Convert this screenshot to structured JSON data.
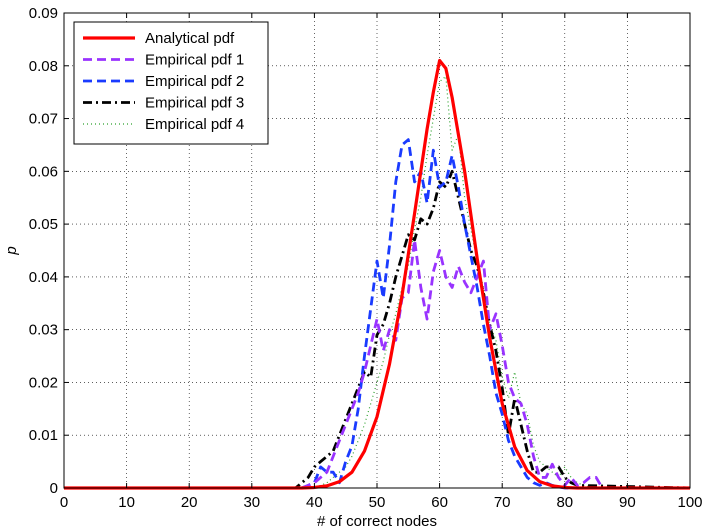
{
  "chart_data": {
    "type": "line",
    "title": "",
    "xlabel": "# of correct nodes",
    "ylabel": "p",
    "xlim": [
      0,
      100
    ],
    "ylim": [
      0,
      0.09
    ],
    "xticks": [
      0,
      10,
      20,
      30,
      40,
      50,
      60,
      70,
      80,
      90,
      100
    ],
    "yticks": [
      0,
      0.01,
      0.02,
      0.03,
      0.04,
      0.05,
      0.06,
      0.07,
      0.08,
      0.09
    ],
    "xtick_labels": [
      "0",
      "10",
      "20",
      "30",
      "40",
      "50",
      "60",
      "70",
      "80",
      "90",
      "100"
    ],
    "ytick_labels": [
      "0",
      "0.01",
      "0.02",
      "0.03",
      "0.04",
      "0.05",
      "0.06",
      "0.07",
      "0.08",
      "0.09"
    ],
    "grid": true,
    "legend_position": "top-left",
    "series": [
      {
        "name": "Analytical pdf",
        "color": "#ff0000",
        "dash": "solid",
        "x": [
          0,
          38,
          40,
          42,
          44,
          46,
          48,
          50,
          52,
          54,
          56,
          58,
          59,
          60,
          61,
          62,
          64,
          66,
          68,
          70,
          72,
          74,
          76,
          78,
          80,
          82,
          100
        ],
        "values": [
          0,
          0,
          0.0001,
          0.0004,
          0.0012,
          0.003,
          0.007,
          0.0135,
          0.0235,
          0.0365,
          0.052,
          0.068,
          0.075,
          0.081,
          0.0795,
          0.074,
          0.06,
          0.0435,
          0.0285,
          0.016,
          0.0078,
          0.0033,
          0.0012,
          0.0004,
          0.0001,
          0,
          0
        ]
      },
      {
        "name": "Empirical pdf 1",
        "color": "#9933ff",
        "dash": "dashed",
        "x": [
          0,
          38,
          39,
          40,
          41,
          42,
          43,
          44,
          45,
          46,
          47,
          48,
          49,
          50,
          51,
          52,
          53,
          54,
          55,
          56,
          57,
          58,
          59,
          60,
          61,
          62,
          63,
          64,
          65,
          66,
          67,
          68,
          69,
          70,
          71,
          72,
          73,
          74,
          75,
          76,
          77,
          78,
          79,
          80,
          81,
          82,
          83,
          84,
          85,
          86,
          100
        ],
        "values": [
          0,
          0,
          0.0005,
          0.001,
          0.002,
          0.003,
          0.006,
          0.009,
          0.012,
          0.015,
          0.018,
          0.022,
          0.027,
          0.032,
          0.026,
          0.03,
          0.028,
          0.036,
          0.037,
          0.047,
          0.038,
          0.032,
          0.041,
          0.045,
          0.04,
          0.038,
          0.042,
          0.039,
          0.037,
          0.04,
          0.043,
          0.03,
          0.033,
          0.027,
          0.02,
          0.017,
          0.016,
          0.012,
          0.006,
          0.002,
          0.002,
          0.0045,
          0.002,
          0.0005,
          0.002,
          0.0005,
          0.001,
          0.002,
          0.002,
          0,
          0
        ]
      },
      {
        "name": "Empirical pdf 2",
        "color": "#1a3bff",
        "dash": "dashed",
        "x": [
          0,
          38,
          39,
          40,
          41,
          42,
          43,
          44,
          45,
          46,
          47,
          48,
          49,
          50,
          51,
          52,
          53,
          54,
          55,
          56,
          57,
          58,
          59,
          60,
          61,
          62,
          63,
          64,
          65,
          66,
          67,
          68,
          69,
          70,
          71,
          72,
          73,
          74,
          75,
          76,
          77,
          78,
          79,
          80,
          100
        ],
        "values": [
          0,
          0,
          0.0005,
          0.001,
          0.004,
          0.003,
          0.003,
          0.001,
          0.005,
          0.008,
          0.015,
          0.025,
          0.034,
          0.043,
          0.036,
          0.046,
          0.058,
          0.065,
          0.066,
          0.058,
          0.06,
          0.054,
          0.064,
          0.057,
          0.058,
          0.063,
          0.057,
          0.05,
          0.044,
          0.038,
          0.031,
          0.025,
          0.018,
          0.014,
          0.009,
          0.006,
          0.004,
          0.002,
          0.001,
          0.0005,
          0.001,
          0.0005,
          0.0002,
          0,
          0
        ]
      },
      {
        "name": "Empirical pdf 3",
        "color": "#000000",
        "dash": "dashdot",
        "x": [
          0,
          37,
          38,
          39,
          40,
          41,
          42,
          43,
          44,
          45,
          46,
          47,
          48,
          49,
          50,
          51,
          52,
          53,
          54,
          55,
          56,
          57,
          58,
          59,
          60,
          61,
          62,
          63,
          64,
          65,
          66,
          67,
          68,
          69,
          70,
          71,
          72,
          73,
          74,
          75,
          76,
          77,
          78,
          79,
          80,
          81,
          82,
          100
        ],
        "values": [
          0,
          0,
          0.001,
          0.002,
          0.004,
          0.005,
          0.006,
          0.007,
          0.01,
          0.013,
          0.016,
          0.019,
          0.022,
          0.021,
          0.029,
          0.031,
          0.035,
          0.04,
          0.044,
          0.048,
          0.047,
          0.051,
          0.05,
          0.053,
          0.058,
          0.057,
          0.06,
          0.055,
          0.05,
          0.045,
          0.042,
          0.037,
          0.031,
          0.026,
          0.019,
          0.01,
          0.017,
          0.012,
          0.007,
          0.003,
          0.003,
          0.004,
          0.004,
          0.004,
          0.002,
          0.001,
          0.0005,
          0
        ]
      },
      {
        "name": "Empirical pdf 4",
        "color": "#2ca02c",
        "dash": "dotted",
        "x": [
          0,
          40,
          41,
          42,
          43,
          44,
          45,
          46,
          47,
          48,
          49,
          50,
          51,
          52,
          53,
          54,
          55,
          56,
          57,
          58,
          59,
          60,
          61,
          62,
          63,
          64,
          65,
          66,
          67,
          68,
          69,
          70,
          71,
          72,
          73,
          74,
          75,
          76,
          77,
          78,
          79,
          80,
          81,
          82,
          83,
          84,
          100
        ],
        "values": [
          0,
          0,
          0.0005,
          0.001,
          0.002,
          0.003,
          0.004,
          0.006,
          0.009,
          0.012,
          0.016,
          0.02,
          0.024,
          0.029,
          0.033,
          0.038,
          0.042,
          0.049,
          0.055,
          0.063,
          0.07,
          0.077,
          0.078,
          0.064,
          0.067,
          0.055,
          0.049,
          0.043,
          0.038,
          0.031,
          0.028,
          0.021,
          0.017,
          0.022,
          0.016,
          0.014,
          0.008,
          0.005,
          0.004,
          0.003,
          0.002,
          0.004,
          0.002,
          0.001,
          0.0005,
          0.0002,
          0
        ]
      }
    ]
  }
}
